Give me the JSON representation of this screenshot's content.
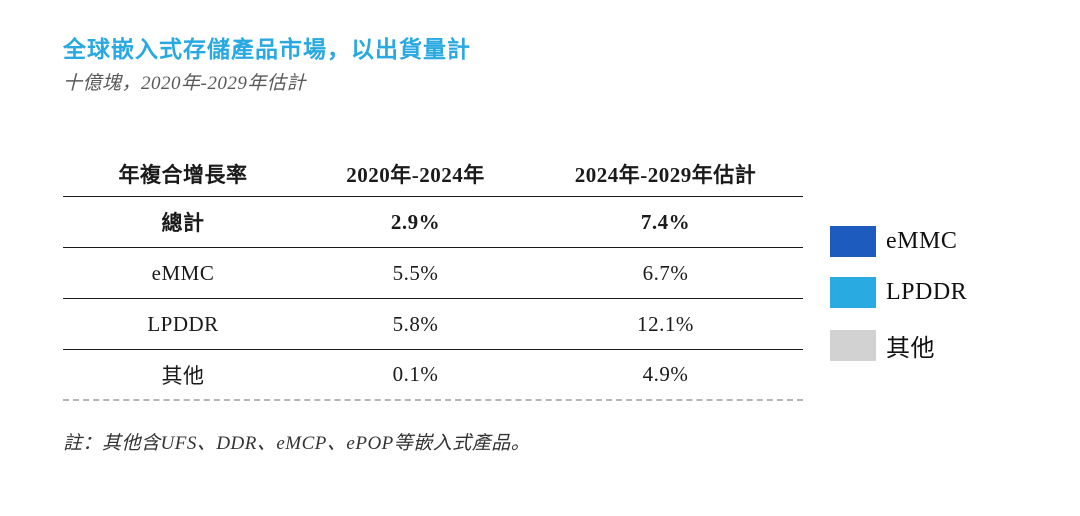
{
  "title": "全球嵌入式存儲產品市場，以出貨量計",
  "subtitle": "十億塊，2020年-2029年估計",
  "note": "註：其他含UFS、DDR、eMCP、ePOP等嵌入式產品。",
  "colors": {
    "title_accent": "#29a9e1",
    "legend_emmc": "#1d5bbf",
    "legend_lpddr": "#29abe2",
    "legend_other": "#d2d2d2"
  },
  "chart_data": {
    "type": "table",
    "title": "全球嵌入式存儲產品市場，以出貨量計",
    "subtitle": "十億塊，2020年-2029年估計",
    "columns": [
      "年複合增長率",
      "2020年-2024年",
      "2024年-2029年估計"
    ],
    "rows": [
      {
        "label": "總計",
        "values": [
          "2.9%",
          "7.4%"
        ],
        "bold": true
      },
      {
        "label": "eMMC",
        "values": [
          "5.5%",
          "6.7%"
        ],
        "bold": false
      },
      {
        "label": "LPDDR",
        "values": [
          "5.8%",
          "12.1%"
        ],
        "bold": false
      },
      {
        "label": "其他",
        "values": [
          "0.1%",
          "4.9%"
        ],
        "bold": false
      }
    ],
    "legend": [
      {
        "label": "eMMC",
        "color": "#1d5bbf"
      },
      {
        "label": "LPDDR",
        "color": "#29abe2"
      },
      {
        "label": "其他",
        "color": "#d2d2d2"
      }
    ],
    "note": "註：其他含UFS、DDR、eMCP、ePOP等嵌入式產品。"
  }
}
